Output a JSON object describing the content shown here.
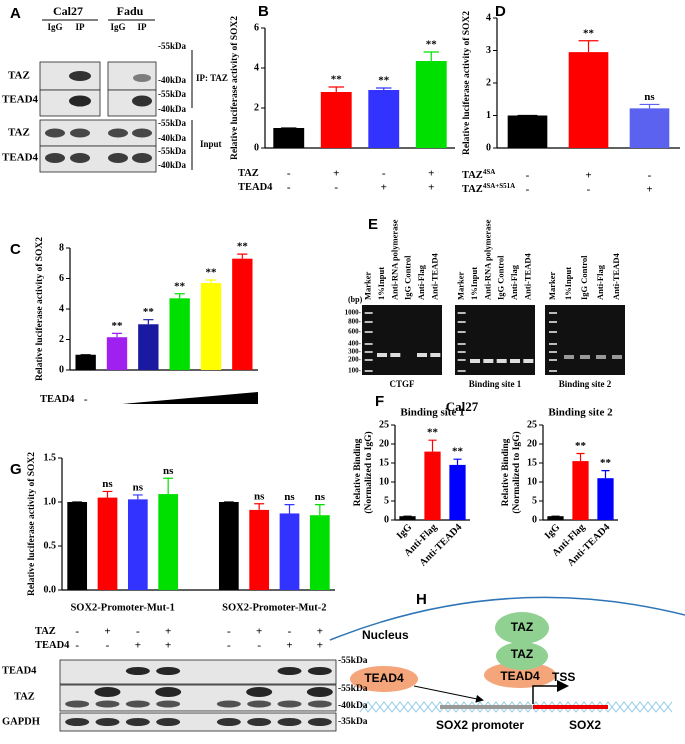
{
  "panel_labels": [
    "A",
    "B",
    "C",
    "D",
    "E",
    "F",
    "G",
    "H"
  ],
  "chart_data": [
    {
      "type": "bar",
      "ylabel": [
        "Relative luciferase activity of SOX2"
      ],
      "ylim": [
        0,
        6
      ],
      "yticks": [
        0,
        2,
        4,
        6
      ],
      "values": [
        1,
        2.8,
        2.9,
        4.35
      ],
      "errors": [
        0,
        0.25,
        0.1,
        0.45
      ],
      "colors": [
        "#000000",
        "#ff0000",
        "#3333ff",
        "#00e000"
      ],
      "annotations": [
        null,
        "**",
        "**",
        "**"
      ],
      "conditions": [
        {
          "name": "TAZ",
          "signs": [
            "-",
            "+",
            "-",
            "+"
          ]
        },
        {
          "name": "TEAD4",
          "signs": [
            "-",
            "-",
            "+",
            "+"
          ]
        }
      ]
    },
    {
      "type": "bar",
      "ylabel": [
        "Relative luciferase activity of SOX2"
      ],
      "ylim": [
        0,
        4
      ],
      "yticks": [
        0,
        1,
        2,
        3,
        4
      ],
      "values": [
        1,
        2.95,
        1.22
      ],
      "errors": [
        0,
        0.35,
        0.12
      ],
      "colors": [
        "#000000",
        "#ff0000",
        "#5b62f0"
      ],
      "annotations": [
        null,
        "**",
        "ns"
      ],
      "conditions": [
        {
          "name": "TAZ",
          "sup": "4SA",
          "signs": [
            "-",
            "+",
            "-"
          ]
        },
        {
          "name": "TAZ",
          "sup": "4SA+S51A",
          "signs": [
            "-",
            "-",
            "+"
          ]
        }
      ]
    },
    {
      "type": "bar",
      "ylabel": [
        "Relative luciferase activity of SOX2"
      ],
      "ylim": [
        0,
        8
      ],
      "yticks": [
        0,
        2,
        4,
        6,
        8
      ],
      "values": [
        1,
        2.15,
        3.0,
        4.7,
        5.7,
        7.3
      ],
      "errors": [
        0,
        0.25,
        0.3,
        0.3,
        0.2,
        0.3
      ],
      "colors": [
        "#000000",
        "#a020f0",
        "#1a1aa0",
        "#00e000",
        "#ffff00",
        "#ff0000"
      ],
      "annotations": [
        null,
        "**",
        "**",
        "**",
        "**",
        "**"
      ],
      "conditions": [
        {
          "name": "TEAD4",
          "signs": [
            "-"
          ]
        }
      ]
    },
    {
      "type": "bar",
      "title": "Binding site 1",
      "ylabel": [
        "Relative Binding",
        "(Normalized to IgG)"
      ],
      "ylim": [
        0,
        25
      ],
      "yticks": [
        0,
        5,
        10,
        15,
        20,
        25
      ],
      "categories": [
        "IgG",
        "Anti-Flag",
        "Anti-TEAD4"
      ],
      "values": [
        1,
        18,
        14.5
      ],
      "errors": [
        0,
        3,
        1.5
      ],
      "colors": [
        "#000000",
        "#ff0000",
        "#0000ff"
      ],
      "annotations": [
        null,
        "**",
        "**"
      ]
    },
    {
      "type": "bar",
      "title": "Binding site 2",
      "ylabel": [
        "Relative Binding",
        "(Normalized to IgG)"
      ],
      "ylim": [
        0,
        25
      ],
      "yticks": [
        0,
        5,
        10,
        15,
        20,
        25
      ],
      "categories": [
        "IgG",
        "Anti-Flag",
        "Anti-TEAD4"
      ],
      "values": [
        1,
        15.5,
        11
      ],
      "errors": [
        0,
        2,
        2
      ],
      "colors": [
        "#000000",
        "#ff0000",
        "#0000ff"
      ],
      "annotations": [
        null,
        "**",
        "**"
      ]
    },
    {
      "type": "bar",
      "ylabel": [
        "Relative luciferase activity of SOX2"
      ],
      "ylim": [
        0,
        1.5
      ],
      "yticks": [
        {
          "value": 0,
          "label": "0.0"
        },
        0.5,
        {
          "value": 1,
          "label": "1.0"
        },
        1.5
      ],
      "groups": [
        "SOX2-Promoter-Mut-1",
        "SOX2-Promoter-Mut-2"
      ],
      "values": [
        1.0,
        1.05,
        1.03,
        1.09,
        1.0,
        0.91,
        0.87,
        0.85
      ],
      "errors": [
        0,
        0.07,
        0.05,
        0.18,
        0,
        0.07,
        0.1,
        0.12
      ],
      "colors": [
        "#000000",
        "#ff0000",
        "#3333ff",
        "#00e000",
        "#000000",
        "#ff0000",
        "#3333ff",
        "#00e000"
      ],
      "annotations": [
        null,
        "ns",
        "ns",
        "ns",
        null,
        "ns",
        "ns",
        "ns"
      ],
      "conditions": [
        {
          "name": "TAZ",
          "signs": [
            "-",
            "+",
            "-",
            "+",
            "-",
            "+",
            "-",
            "+"
          ]
        },
        {
          "name": "TEAD4",
          "signs": [
            "-",
            "-",
            "+",
            "+",
            "-",
            "-",
            "+",
            "+"
          ]
        }
      ]
    }
  ],
  "blot_a": {
    "cell_lines": [
      "Cal27",
      "Fadu"
    ],
    "lanes": [
      "IgG",
      "IP",
      "IgG",
      "IP"
    ],
    "proteins": [
      "TAZ",
      "TEAD4",
      "TAZ",
      "TEAD4"
    ],
    "sizes": [
      "-55kDa",
      "-40kDa",
      "-55kDa",
      "-40kDa",
      "-55kDa",
      "-40kDa",
      "-55kDa",
      "-40kDa"
    ],
    "groups": [
      "IP: TAZ",
      "Input"
    ]
  },
  "gel_e": {
    "lanes": [
      [
        "Marker",
        "1%Input",
        "Anti-RNA polymerase",
        "IgG Control",
        "Anti-Flag",
        "Anti-TEAD4"
      ],
      [
        "Marker",
        "1%Input",
        "Anti-RNA polymerase",
        "IgG Control",
        "Anti-Flag",
        "Anti-TEAD4"
      ],
      [
        "Marker",
        "1%Input",
        "IgG Control",
        "Anti-Flag",
        "Anti-TEAD4"
      ]
    ],
    "bp_unit": "(bp)",
    "ladder": [
      "1000-",
      "800-",
      "600-",
      "400-",
      "300-",
      "200-",
      "100-"
    ],
    "captions": [
      "CTGF",
      "Binding site 1",
      "Binding site 2"
    ],
    "cell_line": "Cal27"
  },
  "blot_g": {
    "proteins": [
      "TEAD4",
      "TAZ",
      "GAPDH"
    ],
    "sizes": [
      "-55kDa",
      "-55kDa",
      "-40kDa",
      "-35kDa"
    ]
  },
  "diagram_h": {
    "compartment": "Nucleus",
    "taz": [
      "TAZ",
      "TAZ"
    ],
    "tead4": [
      "TEAD4",
      "TEAD4"
    ],
    "tss": "TSS",
    "promoter": "SOX2 promoter",
    "gene": "SOX2"
  }
}
